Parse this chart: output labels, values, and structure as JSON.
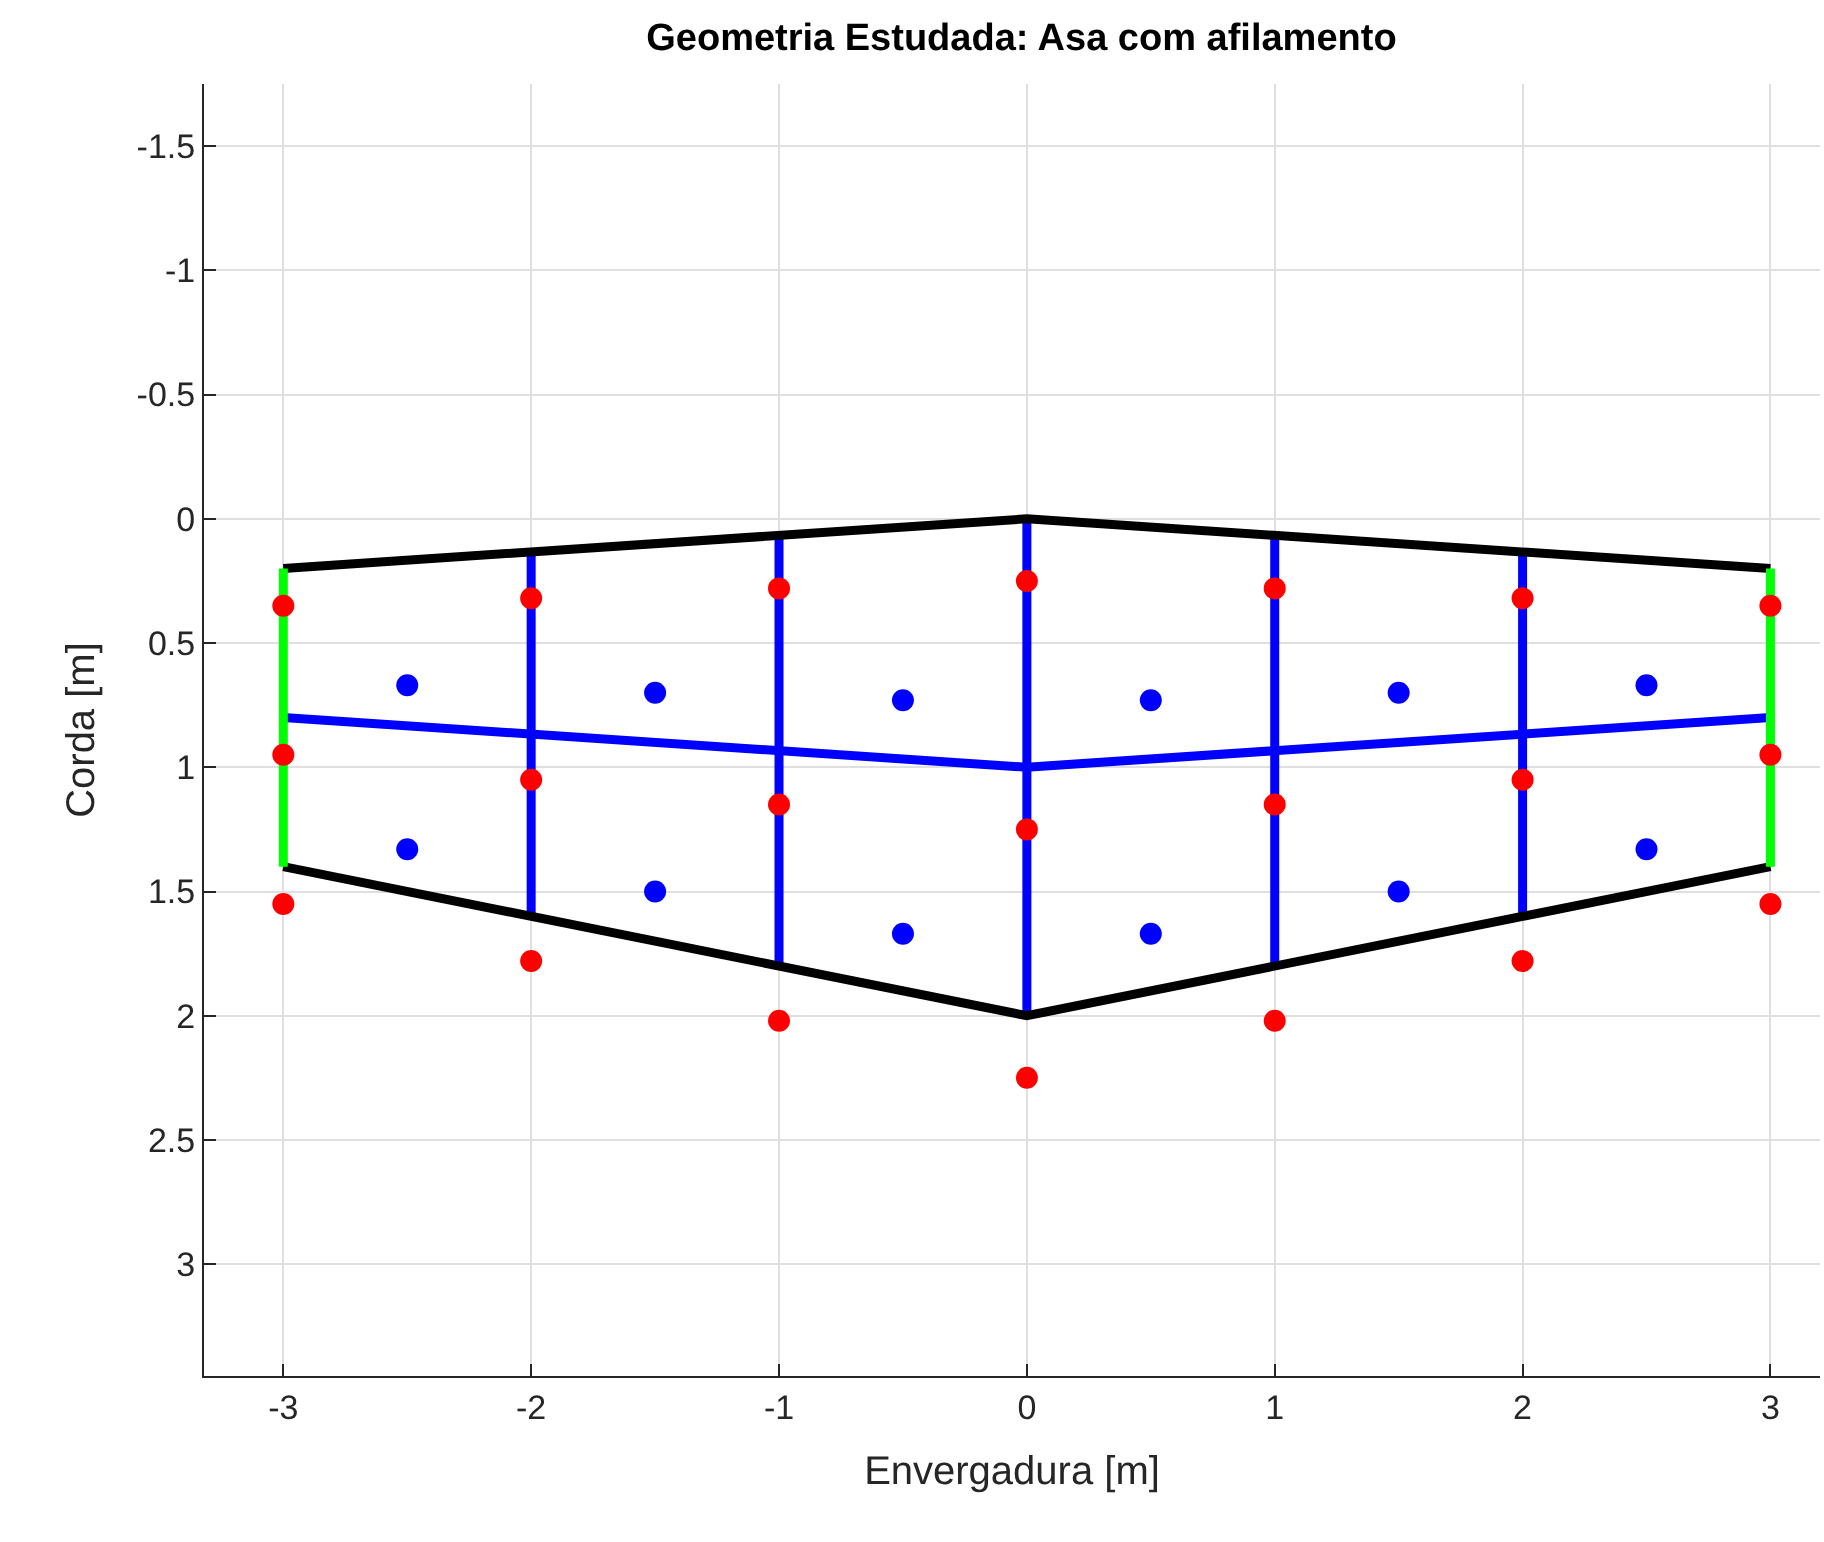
{
  "chart_data": {
    "type": "line",
    "title": "Geometria Estudada: Asa com afilamento",
    "xlabel": "Envergadura [m]",
    "ylabel": "Corda [m]",
    "xlim": [
      -3.32,
      3.2
    ],
    "ylim": [
      3.45,
      -1.75
    ],
    "xticks": [
      -3,
      -2,
      -1,
      0,
      1,
      2,
      3
    ],
    "yticks": [
      -1.5,
      -1,
      -0.5,
      0,
      0.5,
      1,
      1.5,
      2,
      2.5,
      3
    ],
    "grid": true,
    "series": [
      {
        "color": "#0000ff",
        "x": [
          -2,
          -2,
          null,
          -1,
          -1,
          null,
          0,
          0,
          null,
          1,
          1,
          null,
          2,
          2
        ],
        "values": [
          0.13,
          1.6,
          null,
          0.07,
          1.8,
          null,
          0,
          2,
          null,
          0.07,
          1.8,
          null,
          0.13,
          1.6
        ]
      },
      {
        "color": "#0000ff",
        "x": [
          -3,
          0,
          3
        ],
        "values": [
          0.8,
          1.0,
          0.8
        ]
      },
      {
        "color": "#000000",
        "x": [
          -3,
          0,
          3
        ],
        "values": [
          0.2,
          0,
          0.2
        ]
      },
      {
        "color": "#000000",
        "x": [
          -3,
          0,
          3
        ],
        "values": [
          1.4,
          2,
          1.4
        ]
      },
      {
        "color": "#00ff00",
        "x": [
          -3,
          -3,
          null,
          3,
          3
        ],
        "values": [
          0.2,
          1.4,
          null,
          0.2,
          1.4
        ]
      },
      {
        "type": "scatter",
        "marker": "circle",
        "color": "#ff0000",
        "x": [
          -3,
          -3,
          -3,
          -2,
          -2,
          -2,
          -1,
          -1,
          -1,
          0,
          0,
          0,
          1,
          1,
          1,
          2,
          2,
          2,
          3,
          3,
          3
        ],
        "values": [
          0.35,
          0.95,
          1.55,
          0.32,
          1.05,
          1.78,
          0.28,
          1.15,
          2.02,
          0.25,
          1.25,
          2.25,
          0.28,
          1.15,
          2.02,
          0.32,
          1.05,
          1.78,
          0.35,
          0.95,
          1.55
        ]
      },
      {
        "type": "scatter",
        "marker": "circle",
        "color": "#0000ff",
        "x": [
          -2.5,
          -2.5,
          -1.5,
          -1.5,
          -0.5,
          -0.5,
          0.5,
          0.5,
          1.5,
          1.5,
          2.5,
          2.5
        ],
        "values": [
          0.67,
          1.33,
          0.7,
          1.5,
          0.73,
          1.67,
          0.73,
          1.67,
          0.7,
          1.5,
          0.67,
          1.33
        ]
      }
    ]
  }
}
